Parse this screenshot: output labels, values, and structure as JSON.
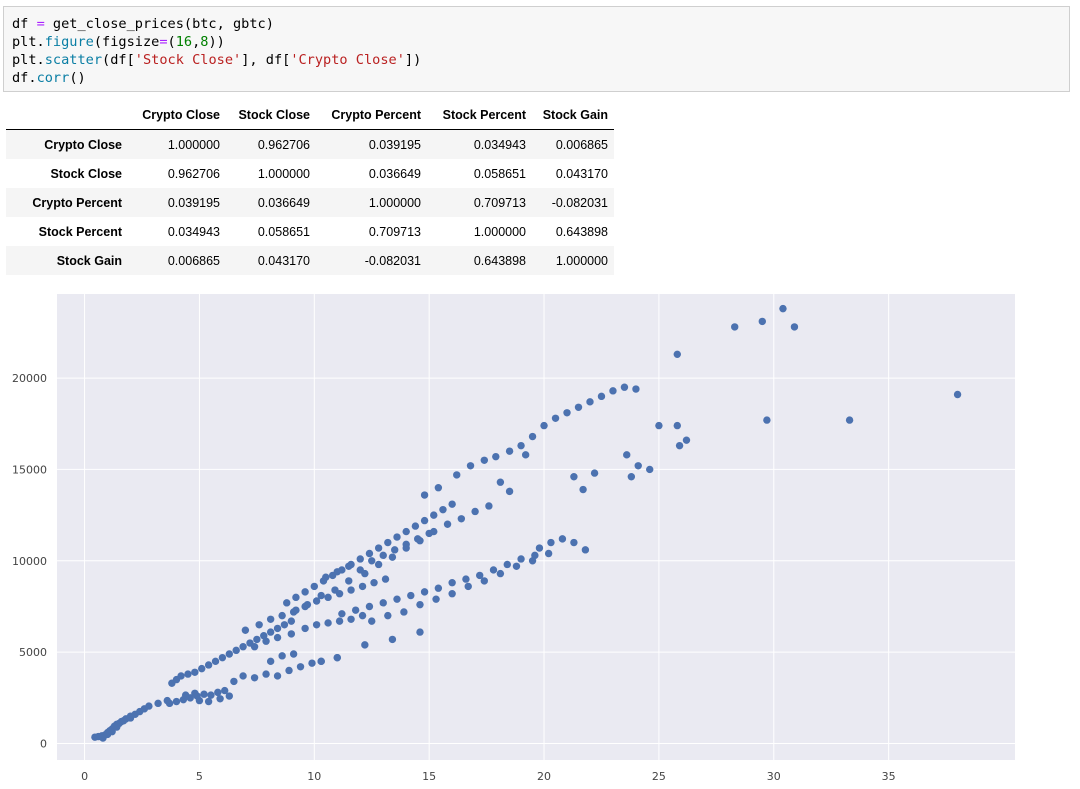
{
  "code": {
    "lines": [
      [
        {
          "t": "df ",
          "c": ""
        },
        {
          "t": "=",
          "c": "op"
        },
        {
          "t": " get_close_prices(btc, gbtc)",
          "c": ""
        }
      ],
      [
        {
          "t": "plt.",
          "c": ""
        },
        {
          "t": "figure",
          "c": "fn"
        },
        {
          "t": "(figsize",
          "c": ""
        },
        {
          "t": "=",
          "c": "op"
        },
        {
          "t": "(",
          "c": ""
        },
        {
          "t": "16",
          "c": "num"
        },
        {
          "t": ",",
          "c": ""
        },
        {
          "t": "8",
          "c": "num"
        },
        {
          "t": "))",
          "c": ""
        }
      ],
      [
        {
          "t": "plt.",
          "c": ""
        },
        {
          "t": "scatter",
          "c": "fn"
        },
        {
          "t": "(df[",
          "c": ""
        },
        {
          "t": "'Stock Close'",
          "c": "str"
        },
        {
          "t": "], df[",
          "c": ""
        },
        {
          "t": "'Crypto Close'",
          "c": "str"
        },
        {
          "t": "])",
          "c": ""
        }
      ],
      [
        {
          "t": "df.",
          "c": ""
        },
        {
          "t": "corr",
          "c": "fn"
        },
        {
          "t": "()",
          "c": ""
        }
      ]
    ]
  },
  "table": {
    "columns": [
      "Crypto Close",
      "Stock Close",
      "Crypto Percent",
      "Stock Percent",
      "Stock Gain"
    ],
    "rows": [
      {
        "label": "Crypto Close",
        "values": [
          "1.000000",
          "0.962706",
          "0.039195",
          "0.034943",
          "0.006865"
        ]
      },
      {
        "label": "Stock Close",
        "values": [
          "0.962706",
          "1.000000",
          "0.036649",
          "0.058651",
          "0.043170"
        ]
      },
      {
        "label": "Crypto Percent",
        "values": [
          "0.039195",
          "0.036649",
          "1.000000",
          "0.709713",
          "-0.082031"
        ]
      },
      {
        "label": "Stock Percent",
        "values": [
          "0.034943",
          "0.058651",
          "0.709713",
          "1.000000",
          "0.643898"
        ]
      },
      {
        "label": "Stock Gain",
        "values": [
          "0.006865",
          "0.043170",
          "-0.082031",
          "0.643898",
          "1.000000"
        ]
      }
    ]
  },
  "chart_data": {
    "type": "scatter",
    "title": "",
    "xlabel": "",
    "ylabel": "",
    "xlim": [
      -1.2,
      40.5
    ],
    "ylim": [
      -900,
      24600
    ],
    "xticks": [
      0,
      5,
      10,
      15,
      20,
      25,
      30,
      35
    ],
    "yticks": [
      0,
      5000,
      10000,
      15000,
      20000
    ],
    "grid": true,
    "background": "#eaeaf2",
    "marker_color": "#4c72b0",
    "series": [
      {
        "points": [
          [
            0.45,
            350
          ],
          [
            0.6,
            380
          ],
          [
            0.75,
            420
          ],
          [
            0.9,
            480
          ],
          [
            1.0,
            600
          ],
          [
            1.1,
            700
          ],
          [
            1.2,
            800
          ],
          [
            1.3,
            950
          ],
          [
            1.4,
            1050
          ],
          [
            1.5,
            1100
          ],
          [
            1.6,
            1200
          ],
          [
            1.8,
            1350
          ],
          [
            2.0,
            1500
          ],
          [
            2.2,
            1600
          ],
          [
            2.4,
            1750
          ],
          [
            2.6,
            1900
          ],
          [
            2.8,
            2050
          ],
          [
            3.2,
            2200
          ],
          [
            3.6,
            2350
          ],
          [
            0.8,
            300
          ],
          [
            1.0,
            500
          ],
          [
            1.2,
            650
          ],
          [
            1.4,
            900
          ],
          [
            1.7,
            1250
          ],
          [
            2.0,
            1400
          ],
          [
            3.7,
            2200
          ],
          [
            4.0,
            2300
          ],
          [
            4.3,
            2400
          ],
          [
            4.6,
            2500
          ],
          [
            4.9,
            2600
          ],
          [
            5.2,
            2700
          ],
          [
            5.5,
            2650
          ],
          [
            5.8,
            2800
          ],
          [
            6.1,
            2900
          ],
          [
            4.4,
            2650
          ],
          [
            4.8,
            2750
          ],
          [
            5.0,
            2350
          ],
          [
            5.4,
            2300
          ],
          [
            5.9,
            2450
          ],
          [
            6.3,
            2600
          ],
          [
            3.8,
            3300
          ],
          [
            4.0,
            3500
          ],
          [
            4.2,
            3700
          ],
          [
            4.5,
            3800
          ],
          [
            4.8,
            3900
          ],
          [
            5.1,
            4100
          ],
          [
            5.4,
            4300
          ],
          [
            5.7,
            4500
          ],
          [
            6.0,
            4700
          ],
          [
            6.3,
            4900
          ],
          [
            6.6,
            5100
          ],
          [
            6.9,
            5300
          ],
          [
            7.2,
            5500
          ],
          [
            7.5,
            5700
          ],
          [
            7.8,
            5900
          ],
          [
            8.1,
            6100
          ],
          [
            8.4,
            6300
          ],
          [
            8.7,
            6500
          ],
          [
            9.0,
            6700
          ],
          [
            6.5,
            3400
          ],
          [
            6.9,
            3700
          ],
          [
            7.4,
            3600
          ],
          [
            7.9,
            3800
          ],
          [
            8.4,
            3700
          ],
          [
            8.9,
            4000
          ],
          [
            9.4,
            4200
          ],
          [
            9.9,
            4400
          ],
          [
            10.3,
            4500
          ],
          [
            11.0,
            4700
          ],
          [
            8.1,
            4500
          ],
          [
            8.6,
            4800
          ],
          [
            9.1,
            4900
          ],
          [
            7.4,
            5300
          ],
          [
            7.9,
            5600
          ],
          [
            8.4,
            5800
          ],
          [
            9.0,
            6000
          ],
          [
            9.6,
            6300
          ],
          [
            10.1,
            6500
          ],
          [
            10.6,
            6600
          ],
          [
            11.1,
            6700
          ],
          [
            11.6,
            6800
          ],
          [
            12.1,
            7000
          ],
          [
            7.0,
            6200
          ],
          [
            7.6,
            6500
          ],
          [
            8.1,
            6800
          ],
          [
            8.6,
            7000
          ],
          [
            9.1,
            7200
          ],
          [
            9.6,
            7500
          ],
          [
            10.1,
            7800
          ],
          [
            10.6,
            8000
          ],
          [
            11.1,
            8200
          ],
          [
            11.6,
            8400
          ],
          [
            12.1,
            8600
          ],
          [
            12.6,
            8800
          ],
          [
            13.1,
            9000
          ],
          [
            8.8,
            7700
          ],
          [
            9.2,
            8000
          ],
          [
            9.6,
            8300
          ],
          [
            10.0,
            8600
          ],
          [
            10.4,
            8900
          ],
          [
            10.8,
            9200
          ],
          [
            11.2,
            9500
          ],
          [
            11.6,
            9800
          ],
          [
            12.0,
            10100
          ],
          [
            12.4,
            10400
          ],
          [
            12.8,
            10700
          ],
          [
            13.2,
            11000
          ],
          [
            13.6,
            11300
          ],
          [
            14.0,
            11600
          ],
          [
            14.4,
            11900
          ],
          [
            14.8,
            12200
          ],
          [
            15.2,
            12500
          ],
          [
            15.6,
            12800
          ],
          [
            16.0,
            13100
          ],
          [
            9.2,
            7300
          ],
          [
            9.7,
            7600
          ],
          [
            10.3,
            8100
          ],
          [
            10.9,
            8400
          ],
          [
            11.5,
            8900
          ],
          [
            12.2,
            9300
          ],
          [
            12.8,
            9800
          ],
          [
            13.4,
            10200
          ],
          [
            14.0,
            10700
          ],
          [
            14.6,
            11100
          ],
          [
            15.2,
            11600
          ],
          [
            15.8,
            12000
          ],
          [
            10.5,
            9100
          ],
          [
            11.0,
            9400
          ],
          [
            11.5,
            9700
          ],
          [
            12.0,
            9500
          ],
          [
            12.5,
            10000
          ],
          [
            13.0,
            10300
          ],
          [
            13.5,
            10600
          ],
          [
            14.0,
            10900
          ],
          [
            14.5,
            11200
          ],
          [
            15.0,
            11500
          ],
          [
            11.2,
            7100
          ],
          [
            11.8,
            7300
          ],
          [
            12.4,
            7500
          ],
          [
            13.0,
            7700
          ],
          [
            13.6,
            7900
          ],
          [
            14.2,
            8100
          ],
          [
            14.8,
            8300
          ],
          [
            15.4,
            8500
          ],
          [
            16.0,
            8800
          ],
          [
            16.6,
            9000
          ],
          [
            17.2,
            9200
          ],
          [
            17.8,
            9500
          ],
          [
            18.4,
            9800
          ],
          [
            19.0,
            10100
          ],
          [
            19.6,
            10300
          ],
          [
            20.2,
            10400
          ],
          [
            12.5,
            6700
          ],
          [
            13.2,
            7000
          ],
          [
            13.9,
            7200
          ],
          [
            14.6,
            7600
          ],
          [
            15.3,
            7900
          ],
          [
            16.0,
            8200
          ],
          [
            16.7,
            8600
          ],
          [
            17.4,
            8900
          ],
          [
            18.1,
            9300
          ],
          [
            18.8,
            9700
          ],
          [
            19.5,
            10000
          ],
          [
            14.8,
            13600
          ],
          [
            15.4,
            14000
          ],
          [
            16.2,
            14700
          ],
          [
            16.8,
            15200
          ],
          [
            17.4,
            15500
          ],
          [
            17.9,
            15700
          ],
          [
            18.5,
            16000
          ],
          [
            19.0,
            16300
          ],
          [
            19.5,
            16800
          ],
          [
            20.0,
            17400
          ],
          [
            20.5,
            17800
          ],
          [
            21.0,
            18100
          ],
          [
            21.5,
            18400
          ],
          [
            22.0,
            18700
          ],
          [
            22.5,
            19000
          ],
          [
            23.0,
            19300
          ],
          [
            23.5,
            19500
          ],
          [
            24.0,
            19400
          ],
          [
            16.4,
            12300
          ],
          [
            17.0,
            12700
          ],
          [
            17.6,
            13000
          ],
          [
            18.1,
            14300
          ],
          [
            18.5,
            13800
          ],
          [
            19.2,
            15800
          ],
          [
            21.3,
            14600
          ],
          [
            21.7,
            13900
          ],
          [
            22.2,
            14800
          ],
          [
            23.6,
            15800
          ],
          [
            24.1,
            15200
          ],
          [
            24.6,
            15000
          ],
          [
            23.8,
            14600
          ],
          [
            25.0,
            17400
          ],
          [
            25.8,
            17400
          ],
          [
            26.2,
            16600
          ],
          [
            25.9,
            16300
          ],
          [
            25.8,
            21300
          ],
          [
            28.3,
            22800
          ],
          [
            29.5,
            23100
          ],
          [
            30.4,
            23800
          ],
          [
            30.9,
            22800
          ],
          [
            29.7,
            17700
          ],
          [
            33.3,
            17700
          ],
          [
            38.0,
            19100
          ],
          [
            19.8,
            10700
          ],
          [
            20.3,
            11000
          ],
          [
            20.8,
            11200
          ],
          [
            21.3,
            11000
          ],
          [
            21.8,
            10600
          ],
          [
            10.3,
            4500
          ],
          [
            11.0,
            4700
          ],
          [
            12.2,
            5400
          ],
          [
            13.4,
            5700
          ],
          [
            14.6,
            6100
          ]
        ]
      }
    ]
  }
}
